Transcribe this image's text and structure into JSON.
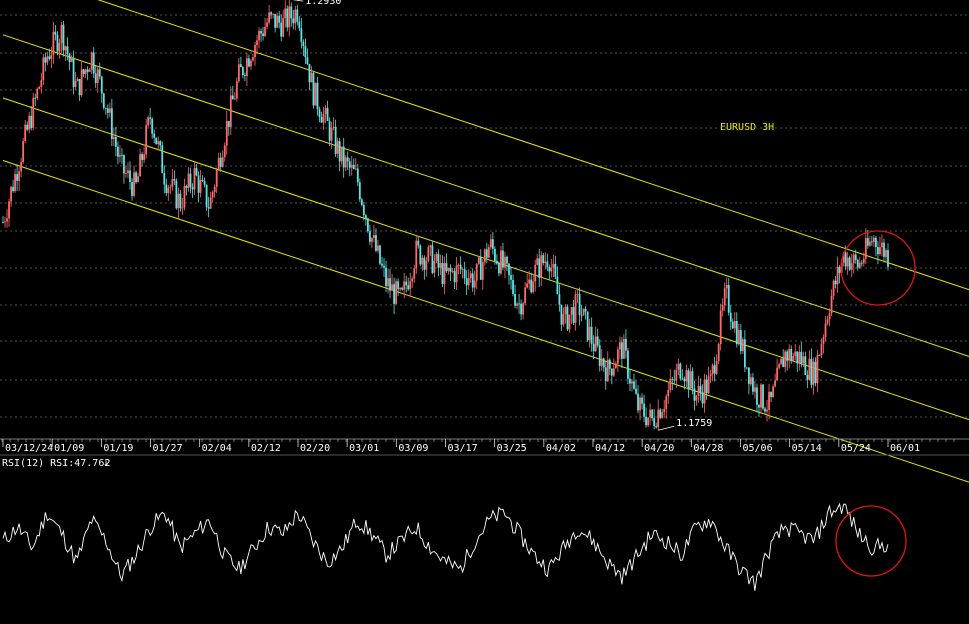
{
  "colors": {
    "background": "#000000",
    "grid": "#6e6e6e",
    "channel": "#e6e600",
    "candle_up": "#ff6a6a",
    "candle_down": "#5fe3e3",
    "rsi_line": "#ffffff",
    "circle": "#e01414",
    "title": "#e6e600",
    "axis_text": "#ffffff",
    "price_label": "#ffffff"
  },
  "chart_data": [
    {
      "type": "candlestick",
      "title": "EURUSD 3H",
      "x_tick_labels": [
        "03/12/24",
        "01/09",
        "01/19",
        "01/27",
        "02/04",
        "02/12",
        "02/20",
        "03/01",
        "03/09",
        "03/17",
        "03/25",
        "04/02",
        "04/12",
        "04/20",
        "04/28",
        "05/06",
        "05/14",
        "05/24",
        "06/01"
      ],
      "ylim": [
        1.1727,
        1.294
      ],
      "grid": true,
      "high_label": "1.2930",
      "low_label": "1.1759",
      "close_series": [
        1.2325,
        1.2485,
        1.264,
        1.28,
        1.287,
        1.27,
        1.28,
        1.266,
        1.248,
        1.242,
        1.263,
        1.245,
        1.238,
        1.246,
        1.237,
        1.257,
        1.274,
        1.283,
        1.29,
        1.289,
        1.293,
        1.27,
        1.26,
        1.25,
        1.245,
        1.228,
        1.215,
        1.21,
        1.224,
        1.222,
        1.217,
        1.219,
        1.216,
        1.226,
        1.219,
        1.209,
        1.218,
        1.223,
        1.204,
        1.209,
        1.198,
        1.19,
        1.197,
        1.18,
        1.1759,
        1.183,
        1.192,
        1.183,
        1.187,
        1.212,
        1.198,
        1.184,
        1.18,
        1.195,
        1.194,
        1.189,
        1.209,
        1.223,
        1.22,
        1.228,
        1.223
      ],
      "channels": [
        {
          "from": [
            "03/12/24",
            1.3048
          ],
          "to": [
            "06/01",
            1.2209
          ]
        },
        {
          "from": [
            "03/12/24",
            1.2858
          ],
          "to": [
            "06/01",
            1.2019
          ]
        },
        {
          "from": [
            "03/12/24",
            1.2678
          ],
          "to": [
            "06/01",
            1.1839
          ]
        },
        {
          "from": [
            "03/12/24",
            1.25
          ],
          "to": [
            "06/01",
            1.1661
          ]
        }
      ],
      "annotations": [
        "red circle around the latest bars"
      ]
    },
    {
      "type": "line",
      "title": "RSI(12)",
      "header": "RSI(12)  RSI:47.762",
      "series": [
        {
          "name": "RSI",
          "last_value": 47.762,
          "values": [
            50,
            60,
            45,
            70,
            55,
            35,
            65,
            50,
            25,
            40,
            60,
            70,
            45,
            55,
            65,
            40,
            30,
            45,
            60,
            55,
            70,
            50,
            35,
            45,
            65,
            55,
            40,
            50,
            60,
            45,
            35,
            30,
            50,
            65,
            70,
            55,
            40,
            30,
            45,
            60,
            50,
            35,
            25,
            40,
            55,
            50,
            40,
            60,
            65,
            45,
            30,
            20,
            45,
            60,
            55,
            50,
            70,
            75,
            55,
            45,
            47.762
          ]
        }
      ],
      "annotations": [
        "red circle around the latest RSI values"
      ]
    }
  ]
}
